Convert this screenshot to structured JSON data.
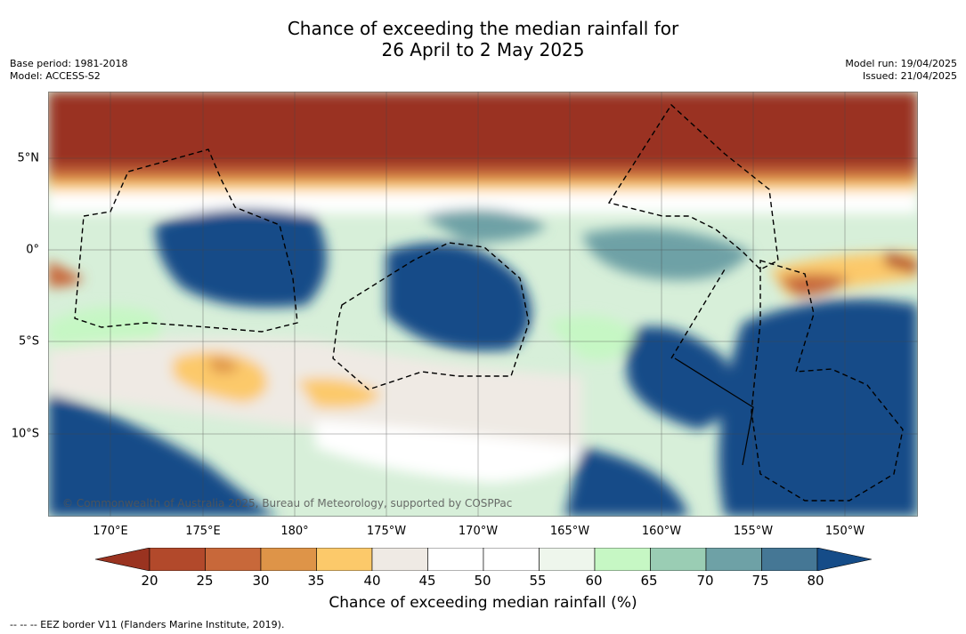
{
  "title": {
    "line1": "Chance of exceeding the median rainfall for",
    "line2": "26 April to 2 May 2025"
  },
  "meta": {
    "base_period": "Base period: 1981-2018",
    "model": "Model: ACCESS-S2",
    "model_run": "Model run: 19/04/2025",
    "issued": "Issued: 21/04/2025"
  },
  "axes": {
    "lon_labels": [
      "170°E",
      "175°E",
      "180°",
      "175°W",
      "170°W",
      "165°W",
      "160°W",
      "155°W",
      "150°W"
    ],
    "lat_labels": [
      "5°N",
      "0°",
      "5°S",
      "10°S"
    ]
  },
  "colorbar": {
    "ticks": [
      "20",
      "25",
      "30",
      "35",
      "40",
      "45",
      "50",
      "55",
      "60",
      "65",
      "70",
      "75",
      "80"
    ],
    "label": "Chance of exceeding median rainfall (%)",
    "colors": [
      "#9a3320",
      "#b2492b",
      "#c8683a",
      "#de9448",
      "#fcc96a",
      "#efeae4",
      "#ffffff",
      "#ffffff",
      "#eef6ec",
      "#c6f7c4",
      "#9acdb4",
      "#6ea1a6",
      "#457795",
      "#154c88"
    ]
  },
  "copyright": "© Commonwealth of Australia 2025, Bureau of Meteorology, supported by COSPPac",
  "footnote": "-- -- -- EEZ border V11 (Flanders Marine Institute, 2019)."
}
